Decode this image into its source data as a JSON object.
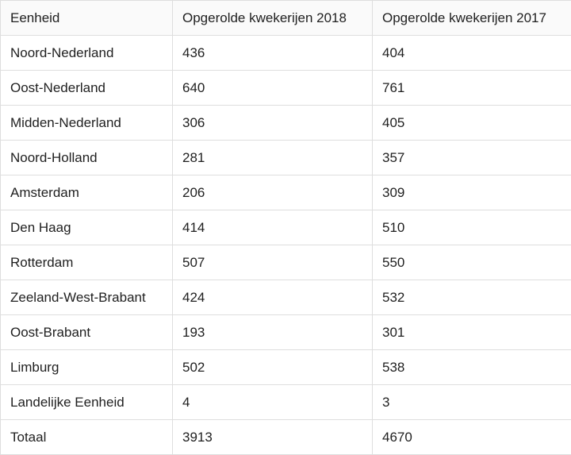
{
  "table": {
    "headers": [
      "Eenheid",
      "Opgerolde kwekerijen 2018",
      "Opgerolde kwekerijen 2017"
    ],
    "rows": [
      [
        "Noord-Nederland",
        "436",
        "404"
      ],
      [
        "Oost-Nederland",
        "640",
        "761"
      ],
      [
        "Midden-Nederland",
        "306",
        "405"
      ],
      [
        "Noord-Holland",
        "281",
        "357"
      ],
      [
        "Amsterdam",
        "206",
        "309"
      ],
      [
        "Den Haag",
        "414",
        "510"
      ],
      [
        "Rotterdam",
        "507",
        "550"
      ],
      [
        "Zeeland-West-Brabant",
        "424",
        "532"
      ],
      [
        "Oost-Brabant",
        "193",
        "301"
      ],
      [
        "Limburg",
        "502",
        "538"
      ],
      [
        "Landelijke Eenheid",
        "4",
        "3"
      ],
      [
        "Totaal",
        "3913",
        "4670"
      ]
    ]
  }
}
